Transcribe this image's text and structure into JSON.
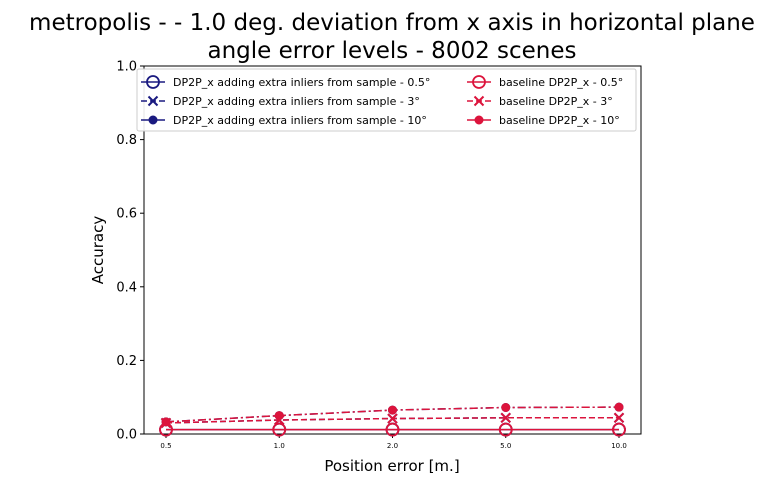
{
  "chart_data": {
    "type": "line",
    "title_line1": "metropolis -  - 1.0 deg. deviation from x axis in horizontal plane",
    "title_line2": "angle error levels - 8002 scenes",
    "xlabel": "Position error [m.]",
    "ylabel": "Accuracy",
    "categories": [
      "0.5",
      "1.0",
      "2.0",
      "5.0",
      "10.0"
    ],
    "y_ticks": [
      "0.0",
      "0.2",
      "0.4",
      "0.6",
      "0.8",
      "1.0"
    ],
    "ylim": [
      0,
      1
    ],
    "legend_position": "top",
    "series": [
      {
        "name": "DP2P_x adding extra inliers from sample - 0.5°",
        "values": [
          0.012,
          0.012,
          0.012,
          0.012,
          0.012
        ],
        "color": "#1a1a80",
        "dash": "solid",
        "marker": "circle-open"
      },
      {
        "name": "DP2P_x adding extra inliers from sample - 3°",
        "values": [
          0.03,
          0.038,
          0.042,
          0.044,
          0.044
        ],
        "color": "#1a1a80",
        "dash": "dashed",
        "marker": "x"
      },
      {
        "name": "DP2P_x adding extra inliers from sample - 10°",
        "values": [
          0.033,
          0.05,
          0.065,
          0.072,
          0.073
        ],
        "color": "#1a1a80",
        "dash": "dashdot",
        "marker": "circle"
      },
      {
        "name": "baseline DP2P_x - 0.5°",
        "values": [
          0.012,
          0.012,
          0.012,
          0.012,
          0.012
        ],
        "color": "#dc143c",
        "dash": "solid",
        "marker": "circle-open"
      },
      {
        "name": "baseline DP2P_x - 3°",
        "values": [
          0.03,
          0.038,
          0.042,
          0.044,
          0.044
        ],
        "color": "#dc143c",
        "dash": "dashed",
        "marker": "x"
      },
      {
        "name": "baseline DP2P_x - 10°",
        "values": [
          0.033,
          0.05,
          0.065,
          0.072,
          0.073
        ],
        "color": "#dc143c",
        "dash": "dashdot",
        "marker": "circle"
      }
    ]
  }
}
